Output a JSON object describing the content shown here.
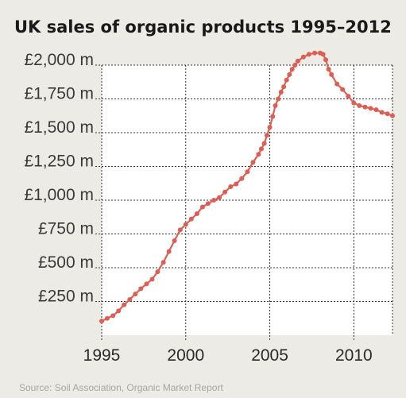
{
  "title": "UK sales of organic products 1995–2012",
  "source": "Source: Soil Association, Organic Market Report",
  "colors": {
    "background": "#ecebe6",
    "plot_background": "#ffffff",
    "series": "#de5e54",
    "grid": "#333333"
  },
  "chart_data": {
    "type": "line",
    "title": "UK sales of organic products 1995–2012",
    "xlabel": "",
    "ylabel": "",
    "xlim": [
      1995,
      2012.3
    ],
    "ylim": [
      0,
      2000
    ],
    "x_ticks": [
      1995,
      2000,
      2005,
      2010
    ],
    "x_tick_labels": [
      "1995",
      "2000",
      "2005",
      "2010"
    ],
    "y_ticks": [
      250,
      500,
      750,
      1000,
      1250,
      1500,
      1750,
      2000
    ],
    "y_tick_labels": [
      "£250 m",
      "£500 m",
      "£750 m",
      "£1,000 m",
      "£1,250 m",
      "£1,500 m",
      "£1,750 m",
      "£2,000 m"
    ],
    "grid": true,
    "grid_style": "dotted",
    "series": [
      {
        "marker": "circle",
        "x": [
          1995,
          1995.33,
          1995.67,
          1996,
          1996.33,
          1996.67,
          1997,
          1997.33,
          1997.67,
          1998,
          1998.33,
          1998.67,
          1999,
          1999.33,
          1999.67,
          2000,
          2000.33,
          2000.67,
          2001,
          2001.33,
          2001.67,
          2002,
          2002.33,
          2002.67,
          2003,
          2003.33,
          2003.67,
          2004,
          2004.33,
          2004.5,
          2004.67,
          2004.83,
          2005,
          2005.17,
          2005.33,
          2005.5,
          2005.67,
          2005.83,
          2006,
          2006.17,
          2006.33,
          2006.5,
          2006.67,
          2007,
          2007.33,
          2007.67,
          2008,
          2008.17,
          2008.33,
          2008.5,
          2008.67,
          2009,
          2009.33,
          2009.67,
          2010,
          2010.33,
          2010.67,
          2011,
          2011.33,
          2011.67,
          2012,
          2012.3
        ],
        "values": [
          105,
          125,
          145,
          180,
          225,
          265,
          305,
          345,
          380,
          415,
          470,
          540,
          620,
          700,
          780,
          820,
          860,
          900,
          950,
          975,
          1000,
          1020,
          1060,
          1100,
          1120,
          1160,
          1210,
          1280,
          1340,
          1380,
          1420,
          1480,
          1540,
          1620,
          1700,
          1750,
          1800,
          1840,
          1890,
          1930,
          1970,
          2000,
          2030,
          2060,
          2080,
          2090,
          2090,
          2080,
          2040,
          1970,
          1930,
          1860,
          1820,
          1770,
          1720,
          1700,
          1690,
          1680,
          1670,
          1650,
          1640,
          1625
        ]
      }
    ]
  }
}
